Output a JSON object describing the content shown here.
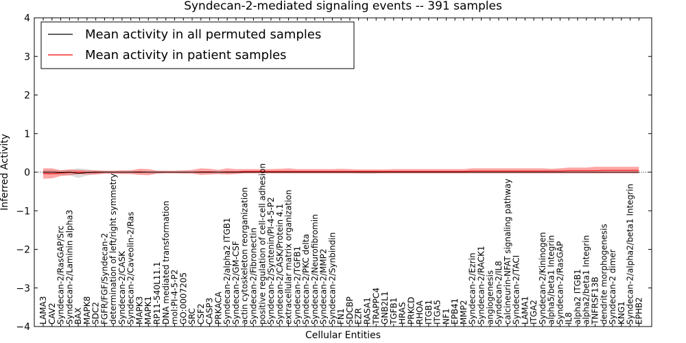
{
  "chart_data": {
    "type": "line",
    "title": "Syndecan-2-mediated signaling events -- 391 samples",
    "xlabel": "Cellular Entities",
    "ylabel": "Inferred Activity",
    "ylim": [
      -4,
      4
    ],
    "yticks": [
      "4",
      "3",
      "2",
      "1",
      "0",
      "−1",
      "−2",
      "−3",
      "−4"
    ],
    "yticks_values": [
      4,
      3,
      2,
      1,
      0,
      -1,
      -2,
      -3,
      -4
    ],
    "legend": {
      "position": "top-left",
      "entries": [
        {
          "label": "Mean activity in all permuted samples",
          "color": "#000000"
        },
        {
          "label": "Mean activity in patient samples",
          "color": "#ff0000"
        }
      ]
    },
    "categories": [
      "LAMA3",
      "CAV2",
      "Syndecan-2/RasGAP/Src",
      "Syndecan-2/Laminin alpha3",
      "BAX",
      "MAPK8",
      "SDC2",
      "FGFR/FGF/Syndecan-2",
      "determination of left/right symmetry",
      "Syndecan-2/CASK",
      "Syndecan-2/Caveolin-2/Ras",
      "MAPK3",
      "MAPK1",
      "RP11-540L11.1",
      "DNA mediated transformation",
      "mol:PI-4-5-P2",
      "GO:0007205",
      "SRC",
      "CSF2",
      "CASP3",
      "PRKACA",
      "Syndecan-2/alpha2 ITGB1",
      "Syndecan-2/GM-CSF",
      "actin cytoskeleton reorganization",
      "Syndecan-2/Fibronectin",
      "positive regulation of cell-cell adhesion",
      "Syndecan-2/Syntenin/PI-4-5-P2",
      "Syndecan-2/CASK/Protein 4.1",
      "extracellular matrix organization",
      "Syndecan-2/TGFB1",
      "Syndecan-2/PKC delta",
      "Syndecan-2/Neurofibromin",
      "Syndecan-2/MMP2",
      "Syndecan-2/Synbindin",
      "FN1",
      "SDCBP",
      "EZR",
      "RASA1",
      "TRAPPC4",
      "GNB2L1",
      "TGFB1",
      "HRAS",
      "PRKCD",
      "RHOA",
      "ITGB1",
      "ITGA5",
      "NF1",
      "EPB41",
      "MMP2",
      "Syndecan-2/Ezrin",
      "Syndecan-2/RACK1",
      "angiogenesis",
      "Syndecan-2/IL8",
      "calcineurin-NFAT signaling pathway",
      "Syndecan-2/TACI",
      "LAMA1",
      "ITGA2",
      "Syndecan-2/Kininogen",
      "alpha5/beta1 Integrin",
      "Syndecan-2/RasGAP",
      "IL8",
      "alpha2 ITGB1",
      "alpha2/beta1 Integrin",
      "TNFRSF13B",
      "dendrite morphogenesis",
      "Syndecan-2 dimer",
      "KNG1",
      "Syndecan-2/alpha2/beta1 Integrin",
      "EPHB2"
    ],
    "series": [
      {
        "name": "Mean activity in all permuted samples",
        "color": "#000000",
        "values": [
          0.0,
          0.0,
          -0.01,
          0.0,
          -0.03,
          -0.01,
          0.0,
          0.0,
          0.0,
          0.0,
          0.0,
          0.0,
          0.0,
          0.0,
          0.0,
          0.0,
          0.0,
          0.0,
          0.0,
          0.0,
          0.0,
          0.0,
          0.0,
          0.0,
          0.0,
          0.0,
          0.0,
          0.0,
          0.0,
          0.0,
          0.0,
          0.0,
          0.0,
          0.0,
          0.0,
          0.0,
          0.0,
          0.0,
          0.0,
          0.0,
          0.0,
          0.0,
          0.0,
          0.0,
          0.0,
          0.0,
          0.0,
          0.0,
          0.0,
          0.0,
          0.0,
          0.0,
          0.0,
          0.0,
          0.0,
          0.0,
          0.0,
          0.0,
          0.0,
          0.0,
          0.0,
          0.0,
          0.0,
          0.0,
          0.0,
          0.0,
          0.0,
          0.0,
          0.0
        ],
        "band_upper": [
          0.06,
          0.06,
          0.05,
          0.06,
          0.1,
          0.08,
          0.04,
          0.03,
          0.03,
          0.03,
          0.03,
          0.03,
          0.03,
          0.03,
          0.02,
          0.02,
          0.02,
          0.02,
          0.03,
          0.03,
          0.03,
          0.03,
          0.03,
          0.02,
          0.02,
          0.02,
          0.02,
          0.02,
          0.02,
          0.02,
          0.02,
          0.02,
          0.02,
          0.02,
          0.02,
          0.02,
          0.02,
          0.02,
          0.02,
          0.02,
          0.02,
          0.02,
          0.02,
          0.02,
          0.02,
          0.02,
          0.02,
          0.02,
          0.02,
          0.02,
          0.02,
          0.02,
          0.02,
          0.02,
          0.02,
          0.02,
          0.02,
          0.02,
          0.02,
          0.02,
          0.02,
          0.02,
          0.02,
          0.02,
          0.02,
          0.02,
          0.02,
          0.02,
          0.02
        ],
        "band_lower": [
          -0.06,
          -0.06,
          -0.07,
          -0.08,
          -0.15,
          -0.09,
          -0.05,
          -0.03,
          -0.03,
          -0.03,
          -0.03,
          -0.03,
          -0.03,
          -0.03,
          -0.02,
          -0.02,
          -0.02,
          -0.02,
          -0.03,
          -0.03,
          -0.03,
          -0.03,
          -0.03,
          -0.02,
          -0.02,
          -0.02,
          -0.02,
          -0.02,
          -0.02,
          -0.02,
          -0.02,
          -0.02,
          -0.02,
          -0.02,
          -0.02,
          -0.02,
          -0.03,
          -0.04,
          -0.03,
          -0.02,
          -0.02,
          -0.02,
          -0.02,
          -0.02,
          -0.02,
          -0.02,
          -0.02,
          -0.02,
          -0.02,
          -0.02,
          -0.02,
          -0.02,
          -0.02,
          -0.02,
          -0.02,
          -0.02,
          -0.02,
          -0.02,
          -0.02,
          -0.02,
          -0.02,
          -0.02,
          -0.02,
          -0.02,
          -0.02,
          -0.02,
          -0.02,
          -0.02,
          -0.02
        ]
      },
      {
        "name": "Mean activity in patient samples",
        "color": "#ff0000",
        "values": [
          -0.03,
          -0.04,
          -0.02,
          -0.01,
          0.0,
          -0.01,
          -0.01,
          0.0,
          0.0,
          0.0,
          0.0,
          0.01,
          0.0,
          0.0,
          0.0,
          0.0,
          0.0,
          0.0,
          0.01,
          0.01,
          0.0,
          0.01,
          0.01,
          0.02,
          0.02,
          0.02,
          0.02,
          0.02,
          0.02,
          0.02,
          0.02,
          0.02,
          0.02,
          0.02,
          0.02,
          0.02,
          0.02,
          0.02,
          0.02,
          0.02,
          0.02,
          0.02,
          0.02,
          0.02,
          0.02,
          0.02,
          0.02,
          0.02,
          0.02,
          0.03,
          0.03,
          0.03,
          0.03,
          0.03,
          0.03,
          0.03,
          0.03,
          0.03,
          0.03,
          0.03,
          0.04,
          0.04,
          0.04,
          0.04,
          0.05,
          0.05,
          0.05,
          0.05,
          0.05
        ],
        "band_upper": [
          0.1,
          0.1,
          0.05,
          0.07,
          0.06,
          0.05,
          0.05,
          0.04,
          0.04,
          0.05,
          0.05,
          0.09,
          0.08,
          0.04,
          0.04,
          0.04,
          0.05,
          0.06,
          0.1,
          0.09,
          0.06,
          0.1,
          0.08,
          0.08,
          0.08,
          0.08,
          0.08,
          0.09,
          0.1,
          0.08,
          0.08,
          0.08,
          0.08,
          0.08,
          0.09,
          0.08,
          0.07,
          0.07,
          0.07,
          0.07,
          0.08,
          0.08,
          0.08,
          0.08,
          0.08,
          0.08,
          0.08,
          0.08,
          0.08,
          0.1,
          0.1,
          0.1,
          0.1,
          0.1,
          0.1,
          0.1,
          0.1,
          0.1,
          0.09,
          0.1,
          0.12,
          0.12,
          0.12,
          0.14,
          0.14,
          0.14,
          0.14,
          0.14,
          0.14
        ],
        "band_lower": [
          -0.17,
          -0.16,
          -0.1,
          -0.08,
          -0.05,
          -0.06,
          -0.06,
          -0.04,
          -0.04,
          -0.05,
          -0.05,
          -0.07,
          -0.08,
          -0.04,
          -0.03,
          -0.03,
          -0.04,
          -0.04,
          -0.07,
          -0.06,
          -0.05,
          -0.06,
          -0.05,
          -0.03,
          -0.03,
          -0.03,
          -0.03,
          -0.03,
          -0.03,
          -0.03,
          -0.03,
          -0.03,
          -0.03,
          -0.03,
          -0.03,
          -0.03,
          -0.03,
          -0.03,
          -0.03,
          -0.03,
          -0.03,
          -0.03,
          -0.03,
          -0.03,
          -0.03,
          -0.03,
          -0.03,
          -0.03,
          -0.03,
          -0.03,
          -0.03,
          -0.03,
          -0.03,
          -0.03,
          -0.03,
          -0.03,
          -0.03,
          -0.03,
          -0.03,
          -0.03,
          -0.03,
          -0.03,
          -0.03,
          -0.03,
          -0.03,
          -0.03,
          -0.03,
          -0.03,
          -0.03
        ]
      }
    ],
    "reference_line": {
      "y": 0,
      "style": "dotted",
      "color": "#000000"
    }
  }
}
